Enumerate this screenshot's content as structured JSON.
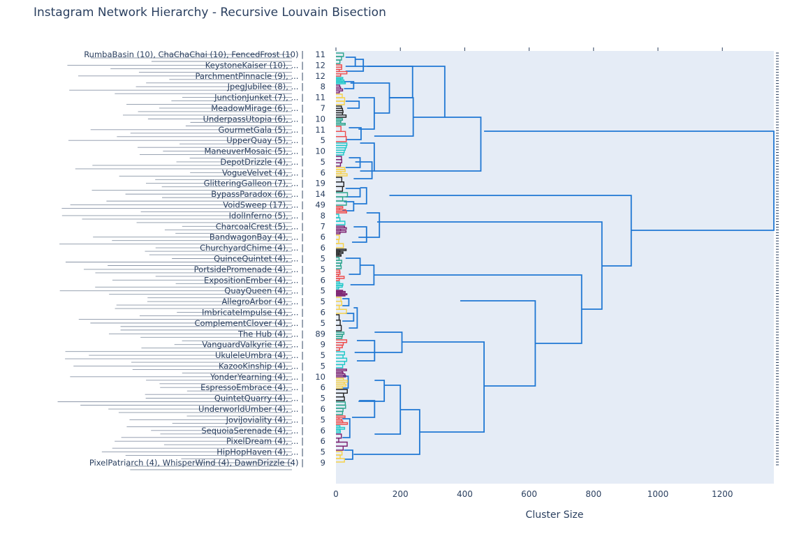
{
  "chart_data": {
    "type": "dendrogram",
    "title": "Instagram Network Hierarchy - Recursive Louvain Bisection",
    "xlabel": "Cluster Size",
    "ylabel": "",
    "xlim": [
      0,
      1360
    ],
    "x_ticks": [
      0,
      200,
      400,
      600,
      800,
      1000,
      1200
    ],
    "grid": false,
    "legend": "none",
    "colors": {
      "plot_bg": "#e5ecf6",
      "link": "#1f77d3",
      "text": "#2a3f5f",
      "leaf_palette": [
        "#2ca58d",
        "#ef4b4b",
        "#1ec8c8",
        "#7b1e6e",
        "#f7d24a",
        "#222222"
      ]
    },
    "visible_leaf_labels": [
      {
        "label": "RumbaBasin (10), ChaChaChai (10), FencedFrost (10)",
        "count": "11"
      },
      {
        "label": "KeystoneKaiser (10), ...",
        "count": "12"
      },
      {
        "label": "ParchmentPinnacle (9), ...",
        "count": "12"
      },
      {
        "label": "JpegJubilee (8), ...",
        "count": "8"
      },
      {
        "label": "JunctionJunket (7), ...",
        "count": "11"
      },
      {
        "label": "MeadowMirage (6), ...",
        "count": "7"
      },
      {
        "label": "UnderpassUtopia (6), ...",
        "count": "10"
      },
      {
        "label": "GourmetGala (5), ...",
        "count": "11"
      },
      {
        "label": "UpperQuay (5), ...",
        "count": "5"
      },
      {
        "label": "ManeuverMosaic (5), ...",
        "count": "10"
      },
      {
        "label": "DepotDrizzle (4), ...",
        "count": "5"
      },
      {
        "label": "VogueVelvet (4), ...",
        "count": "6"
      },
      {
        "label": "GlitteringGalleon (7), ...",
        "count": "19"
      },
      {
        "label": "BypassParadox (6), ...",
        "count": "14"
      },
      {
        "label": "VoidSweep (17), ...",
        "count": "49"
      },
      {
        "label": "IdolInferno (5), ...",
        "count": "8"
      },
      {
        "label": "CharcoalCrest (5), ...",
        "count": "7"
      },
      {
        "label": "BandwagonBay (4), ...",
        "count": "6"
      },
      {
        "label": "ChurchyardChime (4), ...",
        "count": "6"
      },
      {
        "label": "QuinceQuintet (4), ...",
        "count": "5"
      },
      {
        "label": "PortsidePromenade (4), ...",
        "count": "5"
      },
      {
        "label": "ExpositionEmber (4), ...",
        "count": "6"
      },
      {
        "label": "QuayQueen (4), ...",
        "count": "5"
      },
      {
        "label": "AllegroArbor (4), ...",
        "count": "5"
      },
      {
        "label": "ImbricateImpulse (4), ...",
        "count": "6"
      },
      {
        "label": "ComplementClover (4), ...",
        "count": "5"
      },
      {
        "label": "The Hub (4), ...",
        "count": "89"
      },
      {
        "label": "VanguardValkyrie (4), ...",
        "count": "9"
      },
      {
        "label": "UkuleleUmbra (4), ...",
        "count": "5"
      },
      {
        "label": "KazooKinship (4), ...",
        "count": "5"
      },
      {
        "label": "YonderYearning (4), ...",
        "count": "10"
      },
      {
        "label": "EspressoEmbrace (4), ...",
        "count": "6"
      },
      {
        "label": "QuintetQuarry (4), ...",
        "count": "5"
      },
      {
        "label": "UnderworldUmber (4), ...",
        "count": "6"
      },
      {
        "label": "JoviJoviality (4), ...",
        "count": "5"
      },
      {
        "label": "SequoiaSerenade (4), ...",
        "count": "6"
      },
      {
        "label": "PixelDream (4), ...",
        "count": "6"
      },
      {
        "label": "HipHopHaven (4), ...",
        "count": "5"
      },
      {
        "label": "PixelPatriarch (4), WhisperWind (4), DawnDrizzle (4)",
        "count": "9"
      }
    ],
    "merge_sizes": [
      1360,
      917,
      826,
      763,
      619,
      506,
      460,
      338,
      240,
      166,
      119,
      260,
      120,
      108,
      94,
      98,
      74,
      74,
      64,
      55,
      52,
      50,
      48,
      42,
      43,
      35,
      28,
      26,
      26,
      23,
      21,
      11
    ]
  }
}
